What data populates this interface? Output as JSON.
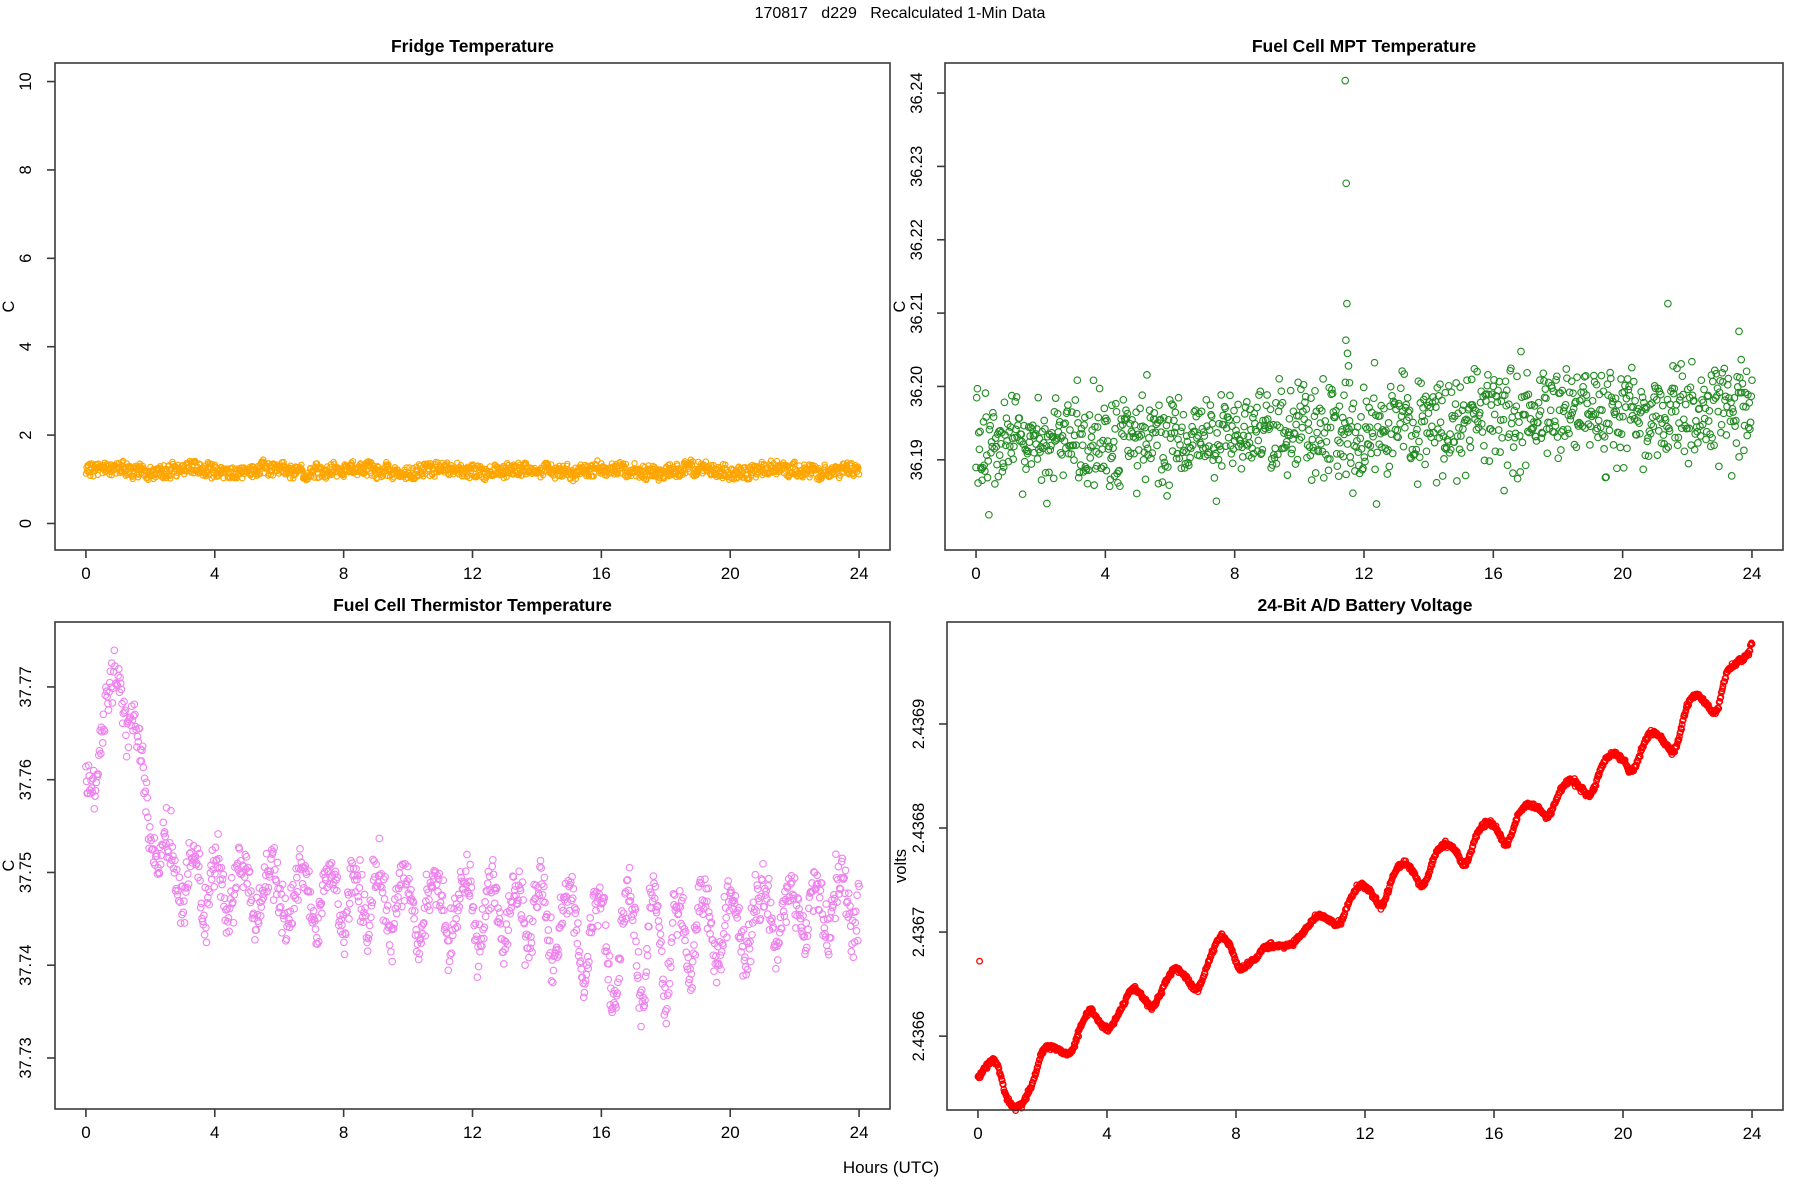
{
  "page": {
    "main_title": "170817   d229   Recalculated 1-Min Data",
    "xlabel": "Hours (UTC)",
    "background": "#ffffff",
    "axis_color": "#3a3a3a",
    "text_color": "#000000"
  },
  "chart_data": [
    {
      "id": "fridge-temperature",
      "type": "scatter",
      "title": "Fridge Temperature",
      "ylabel": "C",
      "marker": "open-circle",
      "color": "#FFA500",
      "xlim": [
        -0.96,
        24.96
      ],
      "ylim": [
        -0.6,
        10.42
      ],
      "xticks": [
        0,
        4,
        8,
        12,
        16,
        20,
        24
      ],
      "xtick_labels": [
        "0",
        "4",
        "8",
        "12",
        "16",
        "20",
        "24"
      ],
      "yticks": [
        0,
        2,
        4,
        6,
        8,
        10
      ],
      "ytick_labels": [
        "0",
        "2",
        "4",
        "6",
        "8",
        "10"
      ],
      "n": 1440,
      "gen": {
        "kind": "band",
        "seed": 7,
        "mean": 1.2,
        "wiggles": [
          [
            2.6,
            0.05
          ],
          [
            0.55,
            0.03
          ]
        ],
        "uniform": 0.15,
        "sigma": 0.02
      }
    },
    {
      "id": "fuel-cell-mpt-temperature",
      "type": "scatter",
      "title": "Fuel Cell MPT Temperature",
      "ylabel": "C",
      "marker": "open-circle",
      "color": "#228B22",
      "xlim": [
        -0.96,
        24.96
      ],
      "ylim": [
        36.1777,
        36.2441
      ],
      "xticks": [
        0,
        4,
        8,
        12,
        16,
        20,
        24
      ],
      "xtick_labels": [
        "0",
        "4",
        "8",
        "12",
        "16",
        "20",
        "24"
      ],
      "yticks": [
        36.19,
        36.2,
        36.21,
        36.22,
        36.23,
        36.24
      ],
      "ytick_labels": [
        "36.19",
        "36.20",
        "36.21",
        "36.22",
        "36.23",
        "36.24"
      ],
      "n": 1150,
      "gen": {
        "kind": "trend-noise",
        "seed": 13,
        "sigma": 0.0033,
        "clip": [
          36.1825,
          36.209
        ],
        "trend": [
          [
            0,
            36.1912
          ],
          [
            2,
            36.1922
          ],
          [
            4,
            36.1924
          ],
          [
            6,
            36.1929
          ],
          [
            8,
            36.1933
          ],
          [
            10,
            36.1934
          ],
          [
            12,
            36.194
          ],
          [
            14,
            36.1944
          ],
          [
            16,
            36.1958
          ],
          [
            18,
            36.1963
          ],
          [
            20,
            36.1964
          ],
          [
            22,
            36.1969
          ],
          [
            24,
            36.1974
          ]
        ],
        "outliers": [
          [
            11.42,
            36.2417
          ],
          [
            11.45,
            36.2277
          ],
          [
            11.47,
            36.2113
          ],
          [
            11.44,
            36.2063
          ],
          [
            11.49,
            36.2045
          ],
          [
            11.52,
            36.2028
          ],
          [
            11.55,
            36.2005
          ],
          [
            11.38,
            36.1988
          ],
          [
            21.4,
            36.2113
          ],
          [
            23.6,
            36.2075
          ]
        ]
      }
    },
    {
      "id": "fuel-cell-thermistor-temperature",
      "type": "scatter",
      "title": "Fuel Cell Thermistor Temperature",
      "ylabel": "C",
      "marker": "open-circle",
      "color": "#EE82EE",
      "xlim": [
        -0.96,
        24.96
      ],
      "ylim": [
        37.7245,
        37.777
      ],
      "xticks": [
        0,
        4,
        8,
        12,
        16,
        20,
        24
      ],
      "xtick_labels": [
        "0",
        "4",
        "8",
        "12",
        "16",
        "20",
        "24"
      ],
      "yticks": [
        37.73,
        37.74,
        37.75,
        37.76,
        37.77
      ],
      "ytick_labels": [
        "37.73",
        "37.74",
        "37.75",
        "37.76",
        "37.77"
      ],
      "n": 1200,
      "gen": {
        "kind": "trend-osc",
        "seed": 29,
        "sigma": 0.0014,
        "trend": [
          [
            0,
            37.76
          ],
          [
            0.4,
            37.7625
          ],
          [
            0.9,
            37.7715
          ],
          [
            1.1,
            37.7722
          ],
          [
            1.5,
            37.765
          ],
          [
            2.2,
            37.7528
          ],
          [
            3,
            37.7498
          ],
          [
            4,
            37.7488
          ],
          [
            5,
            37.7495
          ],
          [
            6,
            37.7482
          ],
          [
            7,
            37.7486
          ],
          [
            8,
            37.7477
          ],
          [
            9,
            37.7477
          ],
          [
            10,
            37.7471
          ],
          [
            11,
            37.7466
          ],
          [
            12,
            37.747
          ],
          [
            13,
            37.7466
          ],
          [
            14,
            37.7461
          ],
          [
            15,
            37.7448
          ],
          [
            16,
            37.7434
          ],
          [
            17,
            37.7436
          ],
          [
            18,
            37.7432
          ],
          [
            19,
            37.7446
          ],
          [
            20,
            37.7446
          ],
          [
            21,
            37.746
          ],
          [
            22,
            37.7464
          ],
          [
            23,
            37.7469
          ],
          [
            24,
            37.7476
          ]
        ],
        "osc_amp": [
          [
            0,
            0.0035
          ],
          [
            1,
            0.004
          ],
          [
            2,
            0.005
          ],
          [
            4,
            0.006
          ],
          [
            8,
            0.006
          ],
          [
            12,
            0.0065
          ],
          [
            14,
            0.007
          ],
          [
            15.5,
            0.009
          ],
          [
            16.3,
            0.013
          ],
          [
            17,
            0.011
          ],
          [
            17.8,
            0.013
          ],
          [
            18.5,
            0.009
          ],
          [
            19.5,
            0.007
          ],
          [
            21,
            0.006
          ],
          [
            24,
            0.0055
          ]
        ],
        "osc_period": 0.85,
        "period_mod": [
          1.3,
          0.12
        ],
        "outliers": []
      }
    },
    {
      "id": "battery-voltage",
      "type": "scatter",
      "title": "24-Bit A/D Battery Voltage",
      "ylabel": "volts",
      "marker": "open-circle",
      "color": "#FF0000",
      "xlim": [
        -0.96,
        24.96
      ],
      "ylim": [
        2.436529,
        2.436998
      ],
      "xticks": [
        0,
        4,
        8,
        12,
        16,
        20,
        24
      ],
      "xtick_labels": [
        "0",
        "4",
        "8",
        "12",
        "16",
        "20",
        "24"
      ],
      "yticks": [
        2.4366,
        2.4367,
        2.4368,
        2.4369
      ],
      "ytick_labels": [
        "2.4366",
        "2.4367",
        "2.4368",
        "2.4369"
      ],
      "n": 1440,
      "gen": {
        "kind": "curve",
        "seed": 3,
        "sigma": 1.3e-06,
        "anchors": [
          [
            0,
            2.43656
          ],
          [
            0.35,
            2.436575
          ],
          [
            0.6,
            2.436573
          ],
          [
            0.9,
            2.43654
          ],
          [
            1.3,
            2.436533
          ],
          [
            1.7,
            2.436555
          ],
          [
            2.0,
            2.436585
          ],
          [
            2.3,
            2.43659
          ],
          [
            2.6,
            2.436585
          ],
          [
            2.9,
            2.436585
          ],
          [
            3.2,
            2.43661
          ],
          [
            3.5,
            2.436625
          ],
          [
            3.8,
            2.436612
          ],
          [
            4.1,
            2.436608
          ],
          [
            4.5,
            2.43663
          ],
          [
            4.8,
            2.436645
          ],
          [
            5.1,
            2.436638
          ],
          [
            5.4,
            2.436628
          ],
          [
            5.8,
            2.43665
          ],
          [
            6.1,
            2.436665
          ],
          [
            6.4,
            2.436658
          ],
          [
            6.8,
            2.436645
          ],
          [
            7.2,
            2.436675
          ],
          [
            7.5,
            2.436695
          ],
          [
            7.8,
            2.436688
          ],
          [
            8.1,
            2.436665
          ],
          [
            8.5,
            2.436672
          ],
          [
            8.9,
            2.436685
          ],
          [
            9.3,
            2.436687
          ],
          [
            9.7,
            2.436688
          ],
          [
            10.1,
            2.4367
          ],
          [
            10.5,
            2.436715
          ],
          [
            10.9,
            2.436712
          ],
          [
            11.2,
            2.436708
          ],
          [
            11.6,
            2.436735
          ],
          [
            11.9,
            2.436745
          ],
          [
            12.2,
            2.436738
          ],
          [
            12.5,
            2.436725
          ],
          [
            12.9,
            2.436755
          ],
          [
            13.2,
            2.436765
          ],
          [
            13.5,
            2.436758
          ],
          [
            13.8,
            2.436745
          ],
          [
            14.2,
            2.436775
          ],
          [
            14.5,
            2.436785
          ],
          [
            14.8,
            2.436778
          ],
          [
            15.1,
            2.436765
          ],
          [
            15.5,
            2.436795
          ],
          [
            15.8,
            2.436805
          ],
          [
            16.1,
            2.436798
          ],
          [
            16.4,
            2.436785
          ],
          [
            16.8,
            2.436815
          ],
          [
            17.1,
            2.436822
          ],
          [
            17.4,
            2.436818
          ],
          [
            17.7,
            2.436812
          ],
          [
            18.1,
            2.436838
          ],
          [
            18.4,
            2.436845
          ],
          [
            18.7,
            2.436838
          ],
          [
            19.0,
            2.436833
          ],
          [
            19.4,
            2.436862
          ],
          [
            19.7,
            2.436872
          ],
          [
            20.0,
            2.436865
          ],
          [
            20.3,
            2.436855
          ],
          [
            20.7,
            2.436885
          ],
          [
            21.0,
            2.436892
          ],
          [
            21.3,
            2.436882
          ],
          [
            21.6,
            2.436875
          ],
          [
            22.0,
            2.436918
          ],
          [
            22.3,
            2.436928
          ],
          [
            22.6,
            2.436918
          ],
          [
            22.9,
            2.436912
          ],
          [
            23.2,
            2.436948
          ],
          [
            23.5,
            2.436958
          ],
          [
            23.7,
            2.436962
          ],
          [
            23.9,
            2.436968
          ],
          [
            24,
            2.436978
          ]
        ],
        "outliers": [
          [
            0.05,
            2.436672
          ]
        ]
      }
    }
  ]
}
